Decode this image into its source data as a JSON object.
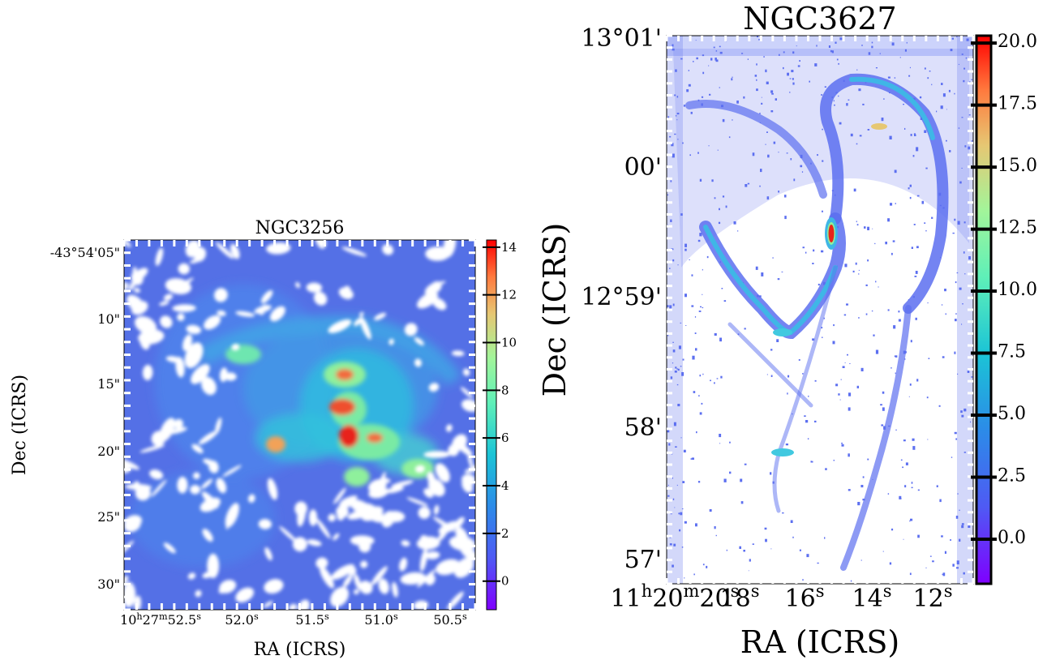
{
  "chart_data": [
    {
      "type": "heatmap",
      "title": "NGC3256",
      "xlabel": "RA (ICRS)",
      "ylabel": "Dec (ICRS)",
      "x_tick_labels": [
        "10h27m52.5s",
        "52.0s",
        "51.5s",
        "51.0s",
        "50.5s"
      ],
      "y_tick_labels": [
        "-43°54'05\"",
        "10\"",
        "15\"",
        "20\"",
        "25\"",
        "30\""
      ],
      "colorbar": {
        "ticks": [
          0,
          2,
          4,
          6,
          8,
          10,
          12,
          14
        ],
        "tick_labels": [
          "0",
          "2",
          "4",
          "6",
          "8",
          "10",
          "12",
          "14"
        ],
        "range": [
          -1.2,
          14.3
        ],
        "colormap": "rainbow"
      },
      "grid": false,
      "colors": {
        "background": "#5470e6",
        "bright": "#62e0b0",
        "peak": "#e8231a",
        "mask": "#ffffff"
      }
    },
    {
      "type": "heatmap",
      "title": "NGC3627",
      "xlabel": "RA (ICRS)",
      "ylabel": "Dec (ICRS)",
      "x_tick_labels": [
        "11h20m20s",
        "18s",
        "16s",
        "14s",
        "12s"
      ],
      "y_tick_labels": [
        "13°01'",
        "00'",
        "12°59'",
        "58'",
        "57'"
      ],
      "colorbar": {
        "ticks": [
          0,
          2.5,
          5,
          7.5,
          10,
          12.5,
          15,
          17.5,
          20
        ],
        "tick_labels": [
          "0.0",
          "2.5",
          "5.0",
          "7.5",
          "10.0",
          "12.5",
          "15.0",
          "17.5",
          "20.0"
        ],
        "range": [
          -1.8,
          20.3
        ],
        "colormap": "rainbow"
      },
      "grid": false,
      "colors": {
        "background": "#5c6ff0",
        "bright": "#41c9e0",
        "peak": "#e8231a",
        "mask": "#ffffff"
      }
    }
  ]
}
